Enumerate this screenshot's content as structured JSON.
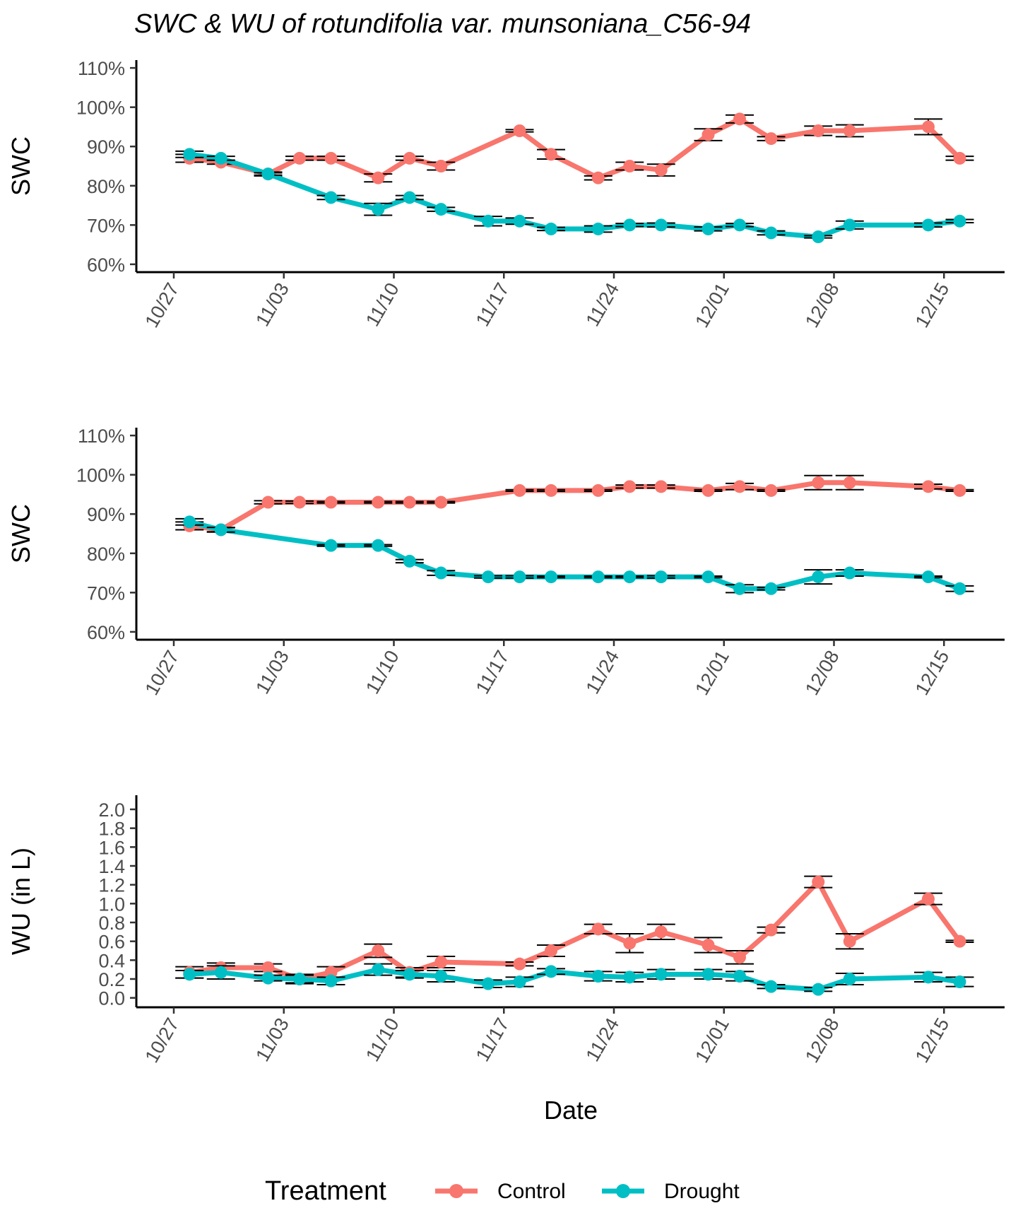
{
  "title": "SWC & WU  of rotundifolia var. munsoniana_C56-94",
  "xlabel": "Date",
  "legend": {
    "title": "Treatment",
    "position": "bottom",
    "items": [
      {
        "label": "Control",
        "color": "#F8766D"
      },
      {
        "label": "Drought",
        "color": "#00BFC4"
      }
    ]
  },
  "chart_data": [
    {
      "type": "line",
      "ylabel": "SWC",
      "ylim": [
        58,
        112
      ],
      "yticks": [
        60,
        70,
        80,
        90,
        100,
        110
      ],
      "ytick_labels": [
        "60%",
        "70%",
        "80%",
        "90%",
        "100%",
        "110%"
      ],
      "x_ticks": [
        "2023-10-27",
        "2023-11-03",
        "2023-11-10",
        "2023-11-17",
        "2023-11-24",
        "2023-12-01",
        "2023-12-08",
        "2023-12-15"
      ],
      "x_tick_labels": [
        "10/27",
        "11/03",
        "11/10",
        "11/17",
        "11/24",
        "12/01",
        "12/08",
        "12/15"
      ],
      "series": [
        {
          "name": "Control",
          "color": "#F8766D",
          "x": [
            "2023-10-28",
            "2023-10-30",
            "2023-11-02",
            "2023-11-04",
            "2023-11-06",
            "2023-11-09",
            "2023-11-11",
            "2023-11-13",
            "2023-11-18",
            "2023-11-20",
            "2023-11-23",
            "2023-11-25",
            "2023-11-27",
            "2023-11-30",
            "2023-12-02",
            "2023-12-04",
            "2023-12-07",
            "2023-12-09",
            "2023-12-14",
            "2023-12-16"
          ],
          "mean": [
            87,
            86,
            83,
            87,
            87,
            82,
            87,
            85,
            94,
            88,
            82,
            85,
            84,
            93,
            97,
            92,
            94,
            94,
            95,
            87
          ],
          "se": [
            1,
            0.5,
            0.5,
            0.5,
            0.5,
            1,
            0.5,
            1,
            0.3,
            1.2,
            0.5,
            1,
            1.5,
            1.5,
            1,
            0.5,
            1.2,
            1.5,
            2,
            0.5
          ]
        },
        {
          "name": "Drought",
          "color": "#00BFC4",
          "x": [
            "2023-10-28",
            "2023-10-30",
            "2023-11-02",
            "2023-11-06",
            "2023-11-09",
            "2023-11-11",
            "2023-11-13",
            "2023-11-16",
            "2023-11-18",
            "2023-11-20",
            "2023-11-23",
            "2023-11-25",
            "2023-11-27",
            "2023-11-30",
            "2023-12-02",
            "2023-12-04",
            "2023-12-07",
            "2023-12-09",
            "2023-12-14",
            "2023-12-16"
          ],
          "mean": [
            88,
            87,
            83,
            77,
            74,
            77,
            74,
            71,
            71,
            69,
            69,
            70,
            70,
            69,
            70,
            68,
            67,
            70,
            70,
            71
          ],
          "se": [
            0.8,
            0.5,
            0.3,
            0.5,
            1.5,
            0.5,
            0.5,
            1.2,
            0.8,
            0.4,
            0.8,
            0.4,
            0.5,
            0.5,
            0.4,
            0.5,
            0.3,
            1,
            0.5,
            0.4
          ]
        }
      ]
    },
    {
      "type": "line",
      "ylabel": "SWC",
      "ylim": [
        58,
        112
      ],
      "yticks": [
        60,
        70,
        80,
        90,
        100,
        110
      ],
      "ytick_labels": [
        "60%",
        "70%",
        "80%",
        "90%",
        "100%",
        "110%"
      ],
      "x_ticks": [
        "2023-10-27",
        "2023-11-03",
        "2023-11-10",
        "2023-11-17",
        "2023-11-24",
        "2023-12-01",
        "2023-12-08",
        "2023-12-15"
      ],
      "x_tick_labels": [
        "10/27",
        "11/03",
        "11/10",
        "11/17",
        "11/24",
        "12/01",
        "12/08",
        "12/15"
      ],
      "series": [
        {
          "name": "Control",
          "color": "#F8766D",
          "x": [
            "2023-10-28",
            "2023-10-30",
            "2023-11-02",
            "2023-11-04",
            "2023-11-06",
            "2023-11-09",
            "2023-11-11",
            "2023-11-13",
            "2023-11-18",
            "2023-11-20",
            "2023-11-23",
            "2023-11-25",
            "2023-11-27",
            "2023-11-30",
            "2023-12-02",
            "2023-12-04",
            "2023-12-07",
            "2023-12-09",
            "2023-12-14",
            "2023-12-16"
          ],
          "mean": [
            87,
            86,
            93,
            93,
            93,
            93,
            93,
            93,
            96,
            96,
            96,
            97,
            97,
            96,
            97,
            96,
            98,
            98,
            97,
            96
          ],
          "se": [
            1,
            0.5,
            0.4,
            0.3,
            0.2,
            0.2,
            0.2,
            0.2,
            0.2,
            0.2,
            0.2,
            0.4,
            0.4,
            0.2,
            0.8,
            0.2,
            1.8,
            1.8,
            0.6,
            0.2
          ]
        },
        {
          "name": "Drought",
          "color": "#00BFC4",
          "x": [
            "2023-10-28",
            "2023-10-30",
            "2023-11-06",
            "2023-11-09",
            "2023-11-11",
            "2023-11-13",
            "2023-11-16",
            "2023-11-18",
            "2023-11-20",
            "2023-11-23",
            "2023-11-25",
            "2023-11-27",
            "2023-11-30",
            "2023-12-02",
            "2023-12-04",
            "2023-12-07",
            "2023-12-09",
            "2023-12-14",
            "2023-12-16"
          ],
          "mean": [
            88,
            86,
            82,
            82,
            78,
            75,
            74,
            74,
            74,
            74,
            74,
            74,
            74,
            71,
            71,
            74,
            75,
            74,
            71
          ],
          "se": [
            0.8,
            0.6,
            0.2,
            0.2,
            0.4,
            0.6,
            0.3,
            0.3,
            0.2,
            0.2,
            0.2,
            0.3,
            0.2,
            1,
            0.3,
            1.8,
            0.8,
            0.2,
            0.7
          ]
        }
      ]
    },
    {
      "type": "line",
      "ylabel": "WU (in L)",
      "ylim": [
        -0.1,
        2.15
      ],
      "yticks": [
        0.0,
        0.2,
        0.4,
        0.6,
        0.8,
        1.0,
        1.2,
        1.4,
        1.6,
        1.8,
        2.0
      ],
      "ytick_labels": [
        "0.0",
        "0.2",
        "0.4",
        "0.6",
        "0.8",
        "1.0",
        "1.2",
        "1.4",
        "1.6",
        "1.8",
        "2.0"
      ],
      "x_ticks": [
        "2023-10-27",
        "2023-11-03",
        "2023-11-10",
        "2023-11-17",
        "2023-11-24",
        "2023-12-01",
        "2023-12-08",
        "2023-12-15"
      ],
      "x_tick_labels": [
        "10/27",
        "11/03",
        "11/10",
        "11/17",
        "11/24",
        "12/01",
        "12/08",
        "12/15"
      ],
      "series": [
        {
          "name": "Control",
          "color": "#F8766D",
          "x": [
            "2023-10-28",
            "2023-10-30",
            "2023-11-02",
            "2023-11-04",
            "2023-11-06",
            "2023-11-09",
            "2023-11-11",
            "2023-11-13",
            "2023-11-18",
            "2023-11-20",
            "2023-11-23",
            "2023-11-25",
            "2023-11-27",
            "2023-11-30",
            "2023-12-02",
            "2023-12-04",
            "2023-12-07",
            "2023-12-09",
            "2023-12-14",
            "2023-12-16"
          ],
          "mean": [
            0.27,
            0.32,
            0.32,
            0.2,
            0.27,
            0.5,
            0.27,
            0.38,
            0.36,
            0.5,
            0.73,
            0.58,
            0.7,
            0.56,
            0.43,
            0.72,
            1.23,
            0.6,
            1.05,
            0.6
          ],
          "se": [
            0.06,
            0.05,
            0.04,
            0.05,
            0.06,
            0.07,
            0.05,
            0.06,
            0.02,
            0.06,
            0.05,
            0.1,
            0.08,
            0.08,
            0.07,
            0.03,
            0.06,
            0.08,
            0.06,
            0.01
          ]
        },
        {
          "name": "Drought",
          "color": "#00BFC4",
          "x": [
            "2023-10-28",
            "2023-10-30",
            "2023-11-02",
            "2023-11-04",
            "2023-11-06",
            "2023-11-09",
            "2023-11-11",
            "2023-11-13",
            "2023-11-16",
            "2023-11-18",
            "2023-11-20",
            "2023-11-23",
            "2023-11-25",
            "2023-11-27",
            "2023-11-30",
            "2023-12-02",
            "2023-12-04",
            "2023-12-07",
            "2023-12-09",
            "2023-12-14",
            "2023-12-16"
          ],
          "mean": [
            0.25,
            0.27,
            0.21,
            0.2,
            0.18,
            0.3,
            0.25,
            0.23,
            0.15,
            0.17,
            0.28,
            0.23,
            0.22,
            0.25,
            0.25,
            0.23,
            0.12,
            0.09,
            0.2,
            0.22,
            0.17
          ],
          "se": [
            0.04,
            0.07,
            0.03,
            0.04,
            0.04,
            0.06,
            0.04,
            0.06,
            0.04,
            0.05,
            0.03,
            0.05,
            0.05,
            0.05,
            0.05,
            0.05,
            0.02,
            0.02,
            0.06,
            0.05,
            0.05
          ]
        }
      ]
    }
  ]
}
